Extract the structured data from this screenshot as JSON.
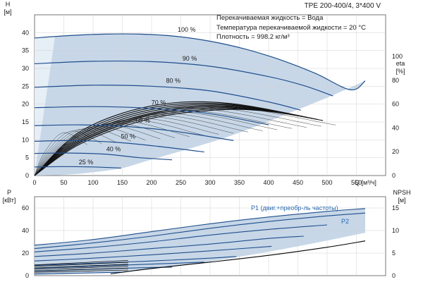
{
  "chart_data": [
    {
      "type": "line",
      "title": "TPE 200-400/4, 3*400 V",
      "annotations": [
        "Перекачиваемая жидкость = Вода",
        "Температура перекачиваемой жидкости = 20 °C",
        "Плотность = 998.2 кг/м³"
      ],
      "ylabel": "H",
      "ylabel_unit": "[м]",
      "y2label": "eta",
      "y2label_unit": "[%]",
      "xlabel": "Q [м³/ч]",
      "xlim": [
        0,
        600
      ],
      "ylim": [
        0,
        45
      ],
      "y2lim": [
        0,
        135
      ],
      "xticks": [
        "0",
        "50",
        "100",
        "150",
        "200",
        "250",
        "300",
        "350",
        "400",
        "450",
        "500",
        "550"
      ],
      "yticks": [
        "0",
        "5",
        "10",
        "15",
        "20",
        "25",
        "30",
        "35",
        "40"
      ],
      "y2ticks": [
        "0",
        "20",
        "40",
        "60",
        "80",
        "100"
      ],
      "grid": true,
      "series": [
        {
          "name": "100 %",
          "x": [
            0,
            60,
            120,
            180,
            240,
            300,
            360,
            420,
            480,
            540,
            565
          ],
          "y": [
            38.5,
            39.2,
            39.6,
            39.6,
            39.0,
            37.6,
            35.4,
            32.4,
            28.6,
            24.0,
            26.5
          ]
        },
        {
          "name": "90 %",
          "x": [
            0,
            100,
            200,
            300,
            400,
            460,
            510
          ],
          "y": [
            31.3,
            32.0,
            31.9,
            30.6,
            27.7,
            25.2,
            22.3
          ]
        },
        {
          "name": "80 %",
          "x": [
            0,
            100,
            200,
            300,
            400,
            455
          ],
          "y": [
            24.7,
            25.3,
            25.0,
            23.7,
            20.6,
            18.3
          ]
        },
        {
          "name": "70 %",
          "x": [
            0,
            100,
            200,
            300,
            400
          ],
          "y": [
            19.0,
            19.3,
            18.8,
            17.3,
            14.2
          ]
        },
        {
          "name": "60 %",
          "x": [
            0,
            80,
            160,
            240,
            340
          ],
          "y": [
            14.0,
            14.2,
            13.7,
            12.4,
            9.8
          ]
        },
        {
          "name": "50 %",
          "x": [
            0,
            70,
            140,
            210,
            290
          ],
          "y": [
            9.6,
            9.8,
            9.3,
            8.2,
            6.6
          ]
        },
        {
          "name": "40 %",
          "x": [
            0,
            60,
            120,
            180,
            235
          ],
          "y": [
            6.2,
            6.3,
            6.0,
            5.0,
            4.4
          ]
        },
        {
          "name": "25 %",
          "x": [
            0,
            50,
            100,
            148
          ],
          "y": [
            2.4,
            2.5,
            2.4,
            2.1
          ]
        }
      ]
    },
    {
      "type": "line",
      "ylabel": "P",
      "ylabel_unit": "[кВт]",
      "y2label": "NPSH",
      "y2label_unit": "[м]",
      "ylim": [
        0,
        70
      ],
      "y2lim": [
        0,
        17.5
      ],
      "yticks": [
        "0",
        "20",
        "40",
        "60"
      ],
      "y2ticks": [
        "0",
        "5",
        "10",
        "15"
      ],
      "grid": true,
      "legend_labels": [
        "P1 (двиг.+преобр-ль частоты)",
        "P2"
      ],
      "series": [
        {
          "name": "P1 (двиг.+преобр-ль частоты)",
          "x": [
            0,
            100,
            200,
            300,
            400,
            500,
            565
          ],
          "y": [
            27,
            32,
            39,
            46,
            52,
            57,
            59.5
          ]
        },
        {
          "name": "P2",
          "x": [
            0,
            100,
            200,
            300,
            400,
            500,
            565
          ],
          "y": [
            24,
            29,
            35,
            42,
            48,
            53,
            55.5
          ]
        },
        {
          "name": "",
          "x": [
            0,
            100,
            200,
            300,
            400,
            500
          ],
          "y": [
            21,
            25,
            30,
            36,
            41,
            45
          ]
        },
        {
          "name": "",
          "x": [
            0,
            100,
            200,
            300,
            400,
            460
          ],
          "y": [
            17,
            20,
            24,
            28,
            33,
            35
          ]
        },
        {
          "name": "",
          "x": [
            0,
            100,
            200,
            300,
            405
          ],
          "y": [
            13,
            15.5,
            18.5,
            22,
            26
          ]
        },
        {
          "name": "",
          "x": [
            0,
            100,
            200,
            300,
            345
          ],
          "y": [
            9,
            11,
            13,
            15.5,
            17
          ]
        },
        {
          "name": "",
          "x": [
            0,
            80,
            160,
            240,
            290
          ],
          "y": [
            6.5,
            8,
            9.5,
            11,
            12
          ]
        },
        {
          "name": "",
          "x": [
            0,
            60,
            120,
            180,
            235
          ],
          "y": [
            4,
            5,
            6,
            7,
            7.5
          ]
        },
        {
          "name": "",
          "x": [
            0,
            50,
            100,
            148
          ],
          "y": [
            1.5,
            2,
            2.5,
            3
          ]
        }
      ],
      "npsh_curve": {
        "x": [
          130,
          200,
          300,
          400,
          500,
          565
        ],
        "y": [
          0.4,
          1.6,
          3.0,
          4.5,
          6.3,
          7.7
        ]
      }
    }
  ]
}
